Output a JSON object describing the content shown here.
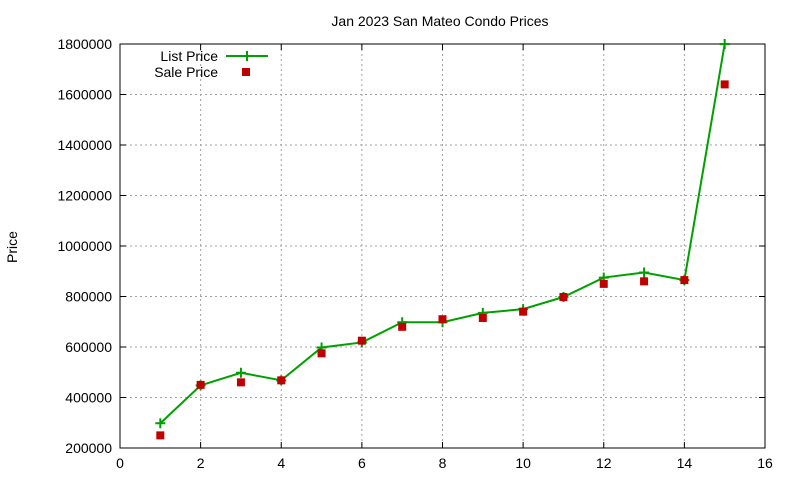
{
  "chart_data": {
    "type": "line",
    "title": "Jan 2023 San Mateo Condo Prices",
    "xlabel": "",
    "ylabel": "Price",
    "xlim": [
      0,
      16
    ],
    "ylim": [
      200000,
      1800000
    ],
    "x_ticks": [
      0,
      2,
      4,
      6,
      8,
      10,
      12,
      14,
      16
    ],
    "y_ticks": [
      200000,
      400000,
      600000,
      800000,
      1000000,
      1200000,
      1400000,
      1600000,
      1800000
    ],
    "grid": true,
    "legend_position": "top-left",
    "series": [
      {
        "name": "List Price",
        "style": "line-with-plus-markers",
        "color": "#00a000",
        "x": [
          1,
          2,
          3,
          4,
          5,
          6,
          7,
          8,
          9,
          10,
          11,
          12,
          13,
          14,
          15
        ],
        "values": [
          298000,
          448000,
          498000,
          468000,
          598000,
          618000,
          698000,
          698000,
          735000,
          750000,
          798000,
          875000,
          895000,
          865000,
          1800000
        ]
      },
      {
        "name": "Sale Price",
        "style": "square-points",
        "color": "#c00000",
        "x": [
          1,
          2,
          3,
          4,
          5,
          6,
          7,
          8,
          9,
          10,
          11,
          12,
          13,
          14,
          15
        ],
        "values": [
          250000,
          450000,
          460000,
          468000,
          575000,
          625000,
          680000,
          710000,
          715000,
          740000,
          798000,
          850000,
          860000,
          865000,
          1640000
        ]
      }
    ]
  }
}
